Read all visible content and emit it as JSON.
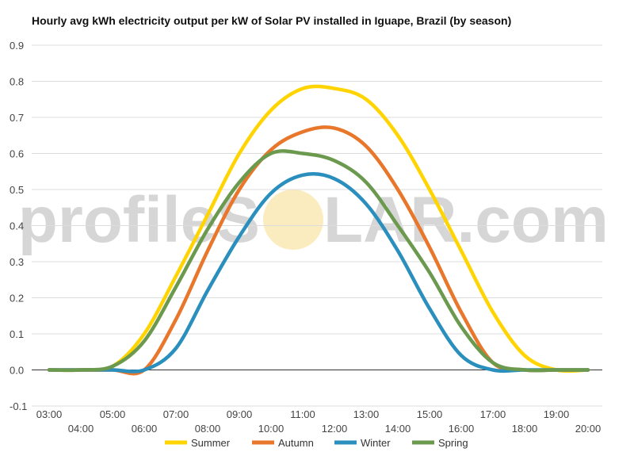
{
  "chart_data": {
    "type": "line",
    "title": "Hourly avg kWh electricity output per kW of Solar PV installed in Iguape, Brazil (by season)",
    "xlabel": "",
    "ylabel": "",
    "ylim": [
      -0.1,
      0.9
    ],
    "yticks": [
      "-0.1",
      "0.0",
      "0.1",
      "0.2",
      "0.3",
      "0.4",
      "0.5",
      "0.6",
      "0.7",
      "0.8",
      "0.9"
    ],
    "x": [
      "03:00",
      "04:00",
      "05:00",
      "06:00",
      "07:00",
      "08:00",
      "09:00",
      "10:00",
      "11:00",
      "12:00",
      "13:00",
      "14:00",
      "15:00",
      "16:00",
      "17:00",
      "18:00",
      "19:00",
      "20:00"
    ],
    "grid": true,
    "legend_position": "bottom",
    "series": [
      {
        "name": "Summer",
        "color": "#ffd400",
        "values": [
          0.0,
          0.0,
          0.01,
          0.1,
          0.26,
          0.43,
          0.6,
          0.72,
          0.78,
          0.78,
          0.75,
          0.65,
          0.5,
          0.33,
          0.16,
          0.04,
          0.0,
          0.0
        ]
      },
      {
        "name": "Autumn",
        "color": "#e8762b",
        "values": [
          0.0,
          0.0,
          0.0,
          0.0,
          0.14,
          0.33,
          0.5,
          0.61,
          0.66,
          0.67,
          0.62,
          0.5,
          0.34,
          0.16,
          0.02,
          0.0,
          0.0,
          0.0
        ]
      },
      {
        "name": "Winter",
        "color": "#2a8fbd",
        "values": [
          0.0,
          0.0,
          0.0,
          0.0,
          0.06,
          0.22,
          0.37,
          0.49,
          0.54,
          0.53,
          0.46,
          0.33,
          0.17,
          0.04,
          0.0,
          0.0,
          0.0,
          0.0
        ]
      },
      {
        "name": "Spring",
        "color": "#6b9a4e",
        "values": [
          0.0,
          0.0,
          0.01,
          0.08,
          0.23,
          0.39,
          0.52,
          0.6,
          0.6,
          0.58,
          0.52,
          0.4,
          0.27,
          0.12,
          0.02,
          0.0,
          0.0,
          0.0
        ]
      }
    ]
  },
  "watermark": {
    "left": "profileS",
    "right": "LAR.com"
  }
}
